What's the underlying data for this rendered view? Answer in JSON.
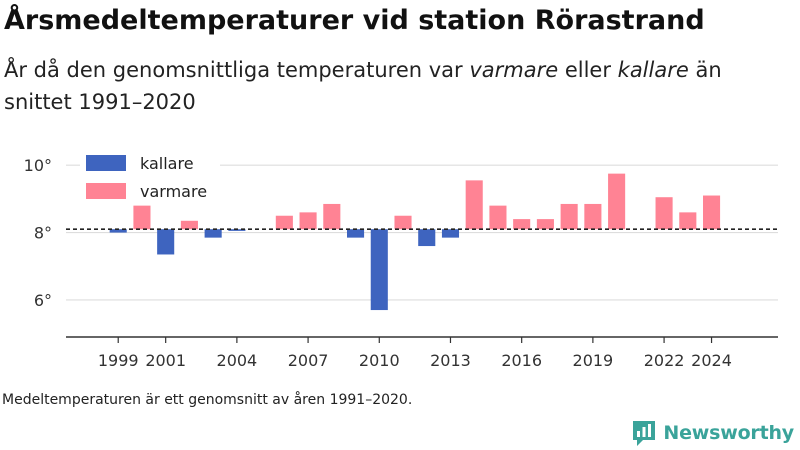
{
  "title": "Årsmedeltemperaturer vid station Rörastrand",
  "subtitle_parts": {
    "pre": "År då den genomsnittliga temperaturen var ",
    "warm_word": "varmare",
    "mid": " eller ",
    "cold_word": "kallare",
    "post": " än snittet 1991–2020"
  },
  "source_note": "Medeltemperaturen är ett genomsnitt av åren 1991–2020.",
  "brand": "Newsworthy",
  "colors": {
    "colder": "#3e64bf",
    "warmer": "#ff8394",
    "grid": "#dddddd",
    "axis": "#333333",
    "brand": "#3aa39a"
  },
  "chart_data": {
    "type": "bar",
    "baseline": 8.1,
    "ylim": [
      4.9,
      10.6
    ],
    "yticks": [
      6,
      8,
      10
    ],
    "ytick_labels": [
      "6°",
      "8°",
      "10°"
    ],
    "xlim": [
      1996.8,
      2026.8
    ],
    "xticks": [
      1999,
      2001,
      2004,
      2007,
      2010,
      2013,
      2016,
      2019,
      2022,
      2024
    ],
    "xtick_labels": [
      "1999",
      "2001",
      "2004",
      "2007",
      "2010",
      "2013",
      "2016",
      "2019",
      "2022",
      "2024"
    ],
    "legend": {
      "position": "top-left",
      "items": [
        "kallare",
        "varmare"
      ]
    },
    "series": [
      {
        "name": "kallare",
        "color": "#3e64bf",
        "points": [
          {
            "year": 1999,
            "value": 8.0
          },
          {
            "year": 2001,
            "value": 7.35
          },
          {
            "year": 2003,
            "value": 7.85
          },
          {
            "year": 2004,
            "value": 8.05
          },
          {
            "year": 2009,
            "value": 7.85
          },
          {
            "year": 2010,
            "value": 5.7
          },
          {
            "year": 2012,
            "value": 7.6
          },
          {
            "year": 2013,
            "value": 7.85
          }
        ]
      },
      {
        "name": "varmare",
        "color": "#ff8394",
        "points": [
          {
            "year": 2000,
            "value": 8.8
          },
          {
            "year": 2002,
            "value": 8.35
          },
          {
            "year": 2006,
            "value": 8.5
          },
          {
            "year": 2007,
            "value": 8.6
          },
          {
            "year": 2008,
            "value": 8.85
          },
          {
            "year": 2011,
            "value": 8.5
          },
          {
            "year": 2014,
            "value": 9.55
          },
          {
            "year": 2015,
            "value": 8.8
          },
          {
            "year": 2016,
            "value": 8.4
          },
          {
            "year": 2017,
            "value": 8.4
          },
          {
            "year": 2018,
            "value": 8.85
          },
          {
            "year": 2019,
            "value": 8.85
          },
          {
            "year": 2020,
            "value": 9.75
          },
          {
            "year": 2022,
            "value": 9.05
          },
          {
            "year": 2023,
            "value": 8.6
          },
          {
            "year": 2024,
            "value": 9.1
          }
        ]
      }
    ]
  }
}
